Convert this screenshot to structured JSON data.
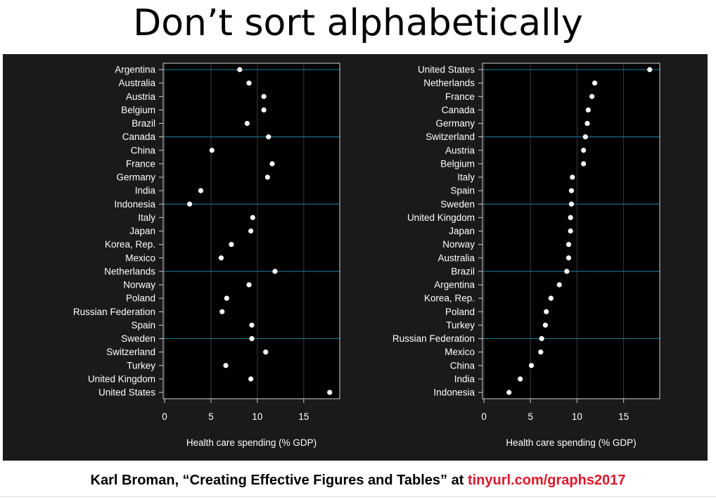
{
  "slide": {
    "title": "Don’t sort alphabetically",
    "credit_text": "Karl Broman, “Creating Effective Figures and Tables” at ",
    "credit_link": "tinyurl.com/graphs2017"
  },
  "colors": {
    "panel_background": "#1a1a1a",
    "plot_background": "#000000",
    "highlight_rule": "#1e6a8a",
    "grid": "#3c3c3c",
    "text": "#ffffff",
    "link": "#e0162b"
  },
  "chart_data": [
    {
      "type": "scatter",
      "subtype": "dot plot",
      "order": "alphabetical",
      "xlabel": "Health care spending (% GDP)",
      "ylabel": "",
      "xlim": [
        0,
        18.5
      ],
      "xticks": [
        0,
        5,
        10,
        15
      ],
      "grid": "vertical",
      "highlight_every": 5,
      "categories": [
        "Argentina",
        "Australia",
        "Austria",
        "Belgium",
        "Brazil",
        "Canada",
        "China",
        "France",
        "Germany",
        "India",
        "Indonesia",
        "Italy",
        "Japan",
        "Korea, Rep.",
        "Mexico",
        "Netherlands",
        "Norway",
        "Poland",
        "Russian Federation",
        "Spain",
        "Sweden",
        "Switzerland",
        "Turkey",
        "United Kingdom",
        "United States"
      ],
      "values": [
        8.1,
        9.1,
        10.7,
        10.7,
        8.9,
        11.2,
        5.1,
        11.6,
        11.1,
        3.9,
        2.7,
        9.5,
        9.3,
        7.2,
        6.1,
        11.9,
        9.1,
        6.7,
        6.2,
        9.4,
        9.4,
        10.9,
        6.6,
        9.3,
        17.8
      ]
    },
    {
      "type": "scatter",
      "subtype": "dot plot",
      "order": "descending by value",
      "xlabel": "Health care spending (% GDP)",
      "ylabel": "",
      "xlim": [
        0,
        18.5
      ],
      "xticks": [
        0,
        5,
        10,
        15
      ],
      "grid": "vertical",
      "highlight_every": 5,
      "categories": [
        "United States",
        "Netherlands",
        "France",
        "Canada",
        "Germany",
        "Switzerland",
        "Austria",
        "Belgium",
        "Italy",
        "Spain",
        "Sweden",
        "United Kingdom",
        "Japan",
        "Norway",
        "Australia",
        "Brazil",
        "Argentina",
        "Korea, Rep.",
        "Poland",
        "Turkey",
        "Russian Federation",
        "Mexico",
        "China",
        "India",
        "Indonesia"
      ],
      "values": [
        17.8,
        11.9,
        11.6,
        11.2,
        11.1,
        10.9,
        10.7,
        10.7,
        9.5,
        9.4,
        9.4,
        9.3,
        9.3,
        9.1,
        9.1,
        8.9,
        8.1,
        7.2,
        6.7,
        6.6,
        6.2,
        6.1,
        5.1,
        3.9,
        2.7
      ]
    }
  ]
}
